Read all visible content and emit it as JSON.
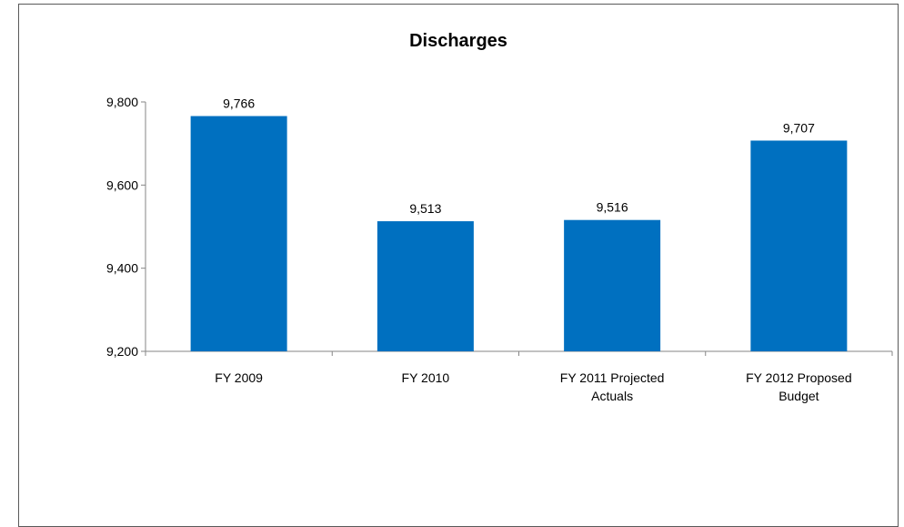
{
  "chart_data": {
    "type": "bar",
    "title": "Discharges",
    "xlabel": "",
    "ylabel": "",
    "categories": [
      [
        "FY 2009"
      ],
      [
        "FY 2010"
      ],
      [
        "FY 2011 Projected",
        "Actuals"
      ],
      [
        "FY 2012 Proposed",
        "Budget"
      ]
    ],
    "values": [
      9766,
      9513,
      9516,
      9707
    ],
    "data_labels": [
      "9,766",
      "9,513",
      "9,516",
      "9,707"
    ],
    "ylim": [
      9200,
      9800
    ],
    "yticks": [
      9200,
      9400,
      9600,
      9800
    ],
    "ytick_labels": [
      "9,200",
      "9,400",
      "9,600",
      "9,800"
    ],
    "grid": false,
    "legend": "none",
    "bar_color": "#0070C0"
  }
}
